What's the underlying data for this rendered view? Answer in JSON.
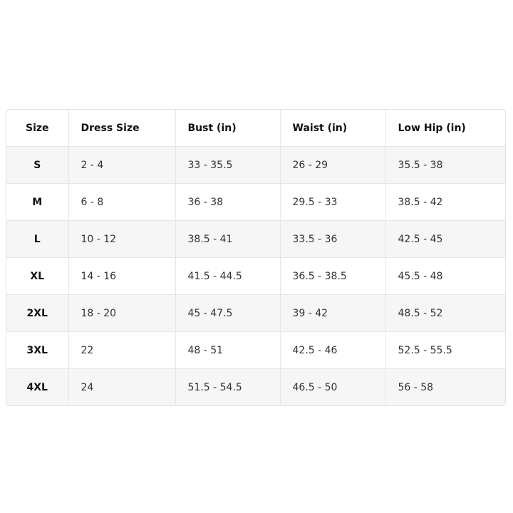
{
  "table": {
    "header": [
      "Size",
      "Dress Size",
      "Bust (in)",
      "Waist (in)",
      "Low Hip (in)"
    ],
    "rows": [
      [
        "S",
        "2 - 4",
        "33 - 35.5",
        "26 - 29",
        "35.5 - 38"
      ],
      [
        "M",
        "6 - 8",
        "36 - 38",
        "29.5 - 33",
        "38.5 - 42"
      ],
      [
        "L",
        "10 - 12",
        "38.5 - 41",
        "33.5 - 36",
        "42.5 - 45"
      ],
      [
        "XL",
        "14 - 16",
        "41.5 - 44.5",
        "36.5 - 38.5",
        "45.5 - 48"
      ],
      [
        "2XL",
        "18 - 20",
        "45 - 47.5",
        "39 - 42",
        "48.5 - 52"
      ],
      [
        "3XL",
        "22",
        "48 - 51",
        "42.5 - 46",
        "52.5 - 55.5"
      ],
      [
        "4XL",
        "24",
        "51.5 - 54.5",
        "46.5 - 50",
        "56 - 58"
      ]
    ]
  }
}
